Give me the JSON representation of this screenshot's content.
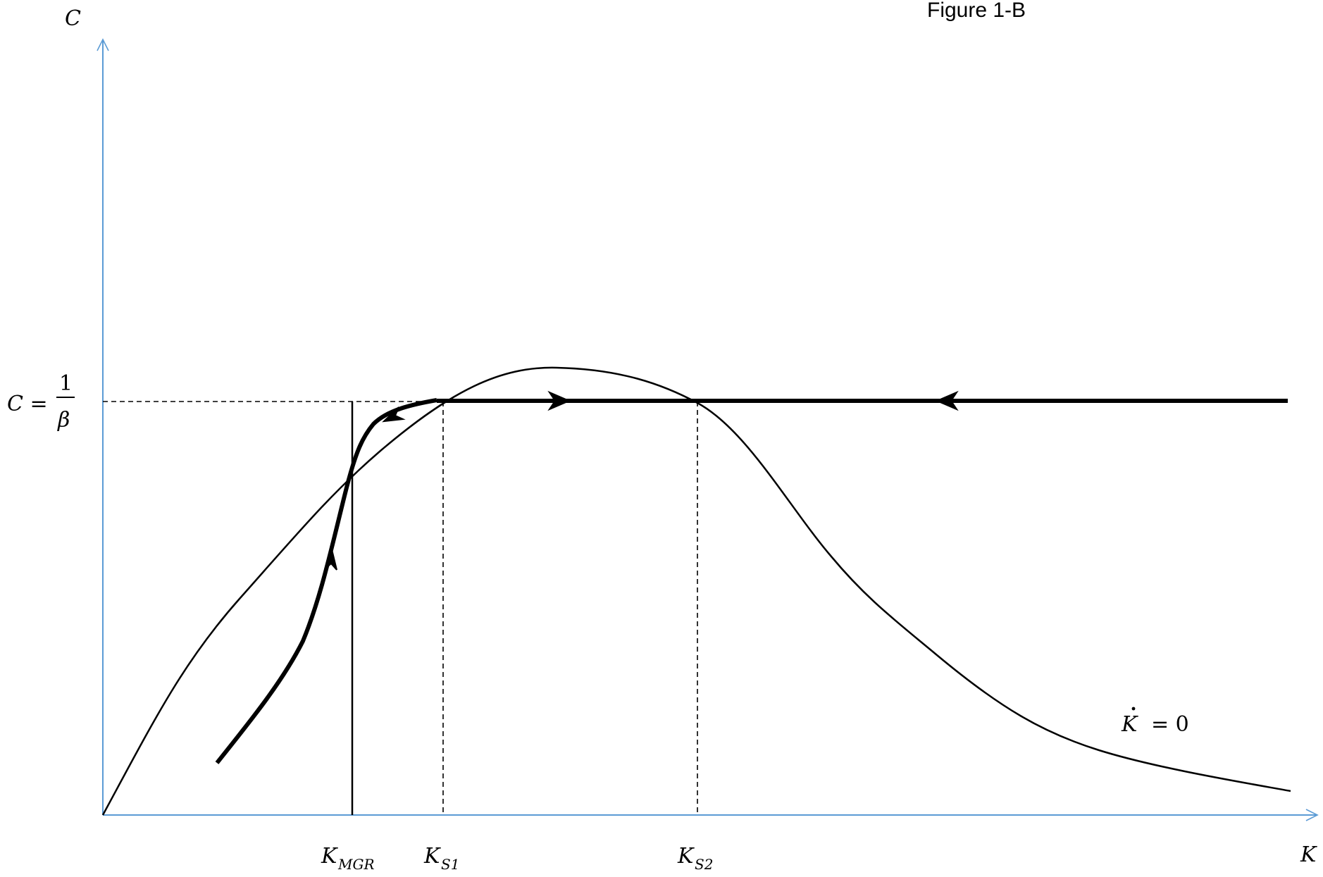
{
  "figure_title": "Figure 1-B",
  "axes": {
    "y_label": "C",
    "x_label": "K",
    "color": "#5b9bd5"
  },
  "level_label": {
    "lhs": "C =",
    "numerator": "1",
    "denominator": "β"
  },
  "curve_label": {
    "symbol": "K",
    "rest": "= 0"
  },
  "x_markers": [
    {
      "main": "K",
      "sub": "MGR"
    },
    {
      "main": "K",
      "sub": "S1"
    },
    {
      "main": "K",
      "sub": "S2"
    }
  ]
}
